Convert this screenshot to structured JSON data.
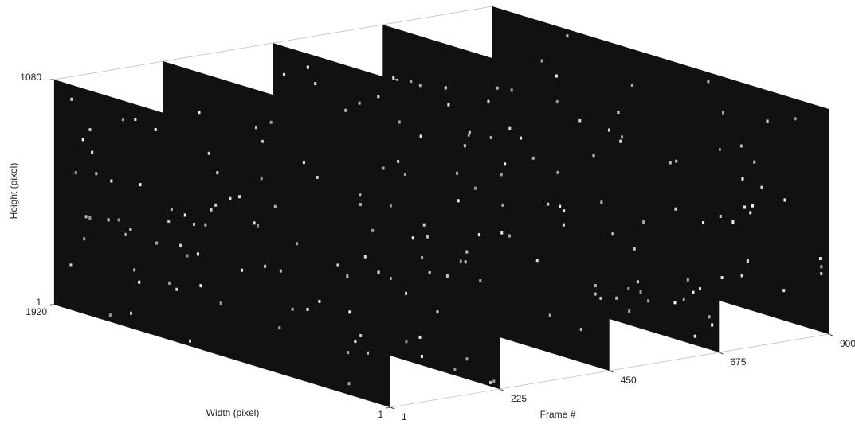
{
  "chart_data": {
    "type": "slice3d",
    "xlabel": "Frame #",
    "ylabel": "Width (pixel)",
    "zlabel": "Height (pixel)",
    "xlim": [
      1,
      900
    ],
    "xticks": [
      1,
      225,
      450,
      675,
      900
    ],
    "ylim": [
      1,
      1920
    ],
    "yticks": [
      1,
      1920
    ],
    "zlim": [
      1,
      1080
    ],
    "zticks": [
      1,
      1080
    ],
    "slices": [
      1,
      225,
      450,
      675,
      900
    ],
    "slice_color": "#111111"
  }
}
